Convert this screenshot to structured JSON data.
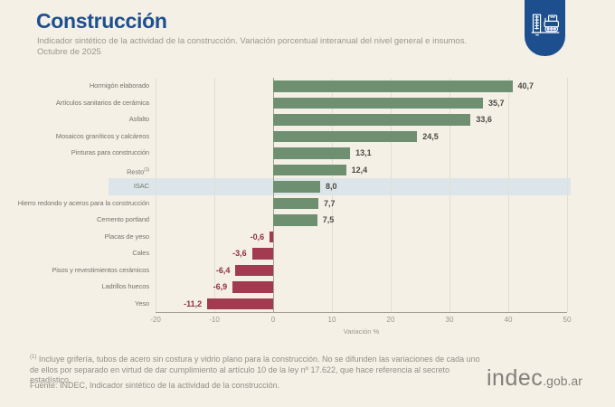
{
  "header": {
    "title": "Construcción",
    "subtitle_line1": "Indicador sintético de la actividad de la construcción. Variación porcentual interanual del nivel general e insumos.",
    "subtitle_line2": "Octubre de 2025"
  },
  "logo": {
    "icon": "construction-building-and-roller-icon",
    "badge_color": "#1d4f8f"
  },
  "chart_data": {
    "type": "bar",
    "orientation": "horizontal",
    "title": "Construcción",
    "xlabel": "Variación %",
    "xlim": [
      -20,
      50
    ],
    "xticks": [
      -20,
      -10,
      0,
      10,
      20,
      30,
      40,
      50
    ],
    "grid": "vertical",
    "categories": [
      "Hormigón elaborado",
      "Artículos sanitarios de cerámica",
      "Asfalto",
      "Mosaicos graníticos y calcáreos",
      "Pinturas para construcción",
      "Resto",
      "ISAC",
      "Hierro redondo y aceros para la construcción",
      "Cemento portland",
      "Placas de yeso",
      "Cales",
      "Pisos y revestimientos cerámicos",
      "Ladrillos huecos",
      "Yeso"
    ],
    "category_sups": [
      "",
      "",
      "",
      "",
      "",
      "(1)",
      "",
      "",
      "",
      "",
      "",
      "",
      "",
      ""
    ],
    "values": [
      40.7,
      35.7,
      33.6,
      24.5,
      13.1,
      12.4,
      8.0,
      7.7,
      7.5,
      -0.6,
      -3.6,
      -6.4,
      -6.9,
      -11.2
    ],
    "value_labels": [
      "40,7",
      "35,7",
      "33,6",
      "24,5",
      "13,1",
      "12,4",
      "8,0",
      "7,7",
      "7,5",
      "-0,6",
      "-3,6",
      "-6,4",
      "-6,9",
      "-11,2"
    ],
    "highlight_category": "ISAC",
    "positive_color": "#6e8f70",
    "negative_color": "#a23a50",
    "highlight_band_color": "#dce6ea"
  },
  "footer": {
    "footnote_sup": "(1)",
    "footnote_text": " Incluye grifería, tubos de acero sin costura y vidrio plano para la construcción. No se difunden las variaciones de cada uno de ellos por separado en virtud de dar cumplimiento al artículo 10 de la ley nº 17.622, que hace referencia al secreto estadístico.",
    "source": "Fuente: INDEC, Indicador sintético de la actividad de la construcción.",
    "site_main": "indec",
    "site_suffix": ".gob.ar"
  }
}
